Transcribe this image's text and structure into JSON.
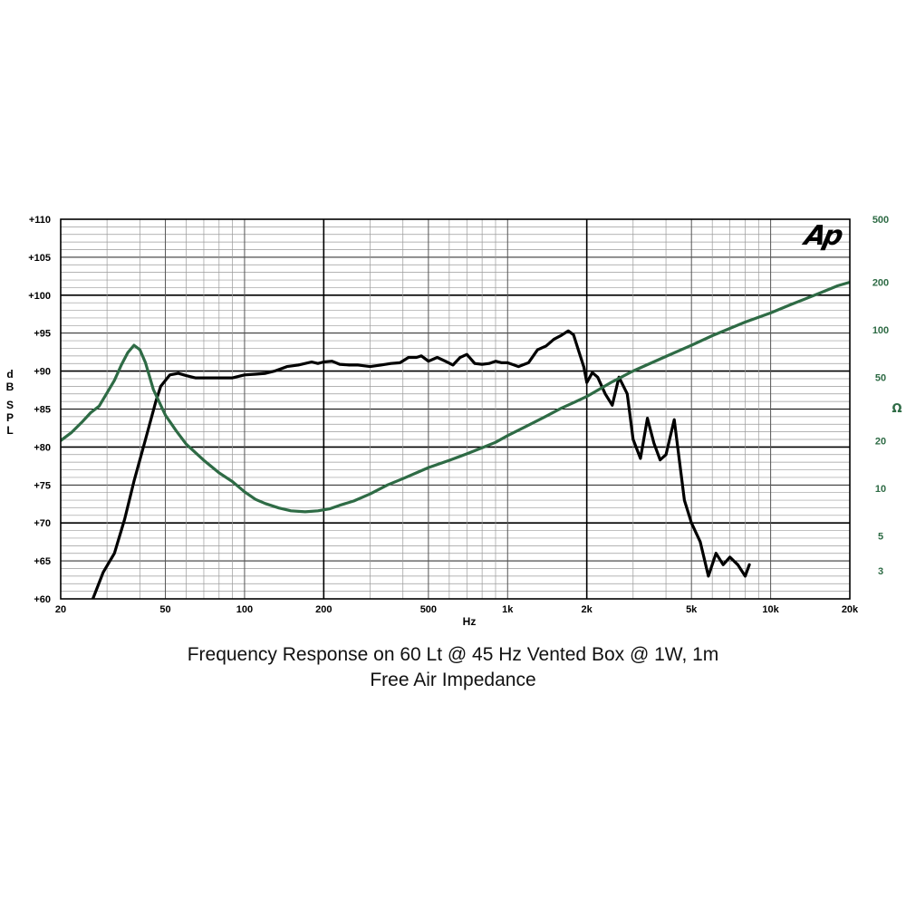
{
  "chart_data": {
    "type": "line",
    "title": "Frequency Response on 60 Lt @ 45 Hz Vented Box @ 1W, 1m",
    "subtitle": "Free Air Impedance",
    "xlabel": "Hz",
    "ylabel_left": "dB SPL",
    "ylabel_right": "Ω",
    "x_scale": "log",
    "xlim": [
      20,
      20000
    ],
    "ylim_left": [
      60,
      110
    ],
    "ylim_right": [
      2,
      500
    ],
    "y_right_scale": "log",
    "grid": true,
    "logo": "Ap",
    "x_ticks": [
      {
        "value": 20,
        "label": "20"
      },
      {
        "value": 50,
        "label": "50"
      },
      {
        "value": 100,
        "label": "100"
      },
      {
        "value": 200,
        "label": "200"
      },
      {
        "value": 500,
        "label": "500"
      },
      {
        "value": 1000,
        "label": "1k"
      },
      {
        "value": 2000,
        "label": "2k"
      },
      {
        "value": 5000,
        "label": "5k"
      },
      {
        "value": 10000,
        "label": "10k"
      },
      {
        "value": 20000,
        "label": "20k"
      }
    ],
    "y_left_ticks": [
      {
        "value": 60,
        "label": "+60"
      },
      {
        "value": 65,
        "label": "+65"
      },
      {
        "value": 70,
        "label": "+70"
      },
      {
        "value": 75,
        "label": "+75"
      },
      {
        "value": 80,
        "label": "+80"
      },
      {
        "value": 85,
        "label": "+85"
      },
      {
        "value": 90,
        "label": "+90"
      },
      {
        "value": 95,
        "label": "+95"
      },
      {
        "value": 100,
        "label": "+100"
      },
      {
        "value": 105,
        "label": "+105"
      },
      {
        "value": 110,
        "label": "+110"
      }
    ],
    "y_right_ticks": [
      {
        "value": 3,
        "label": "3"
      },
      {
        "value": 5,
        "label": "5"
      },
      {
        "value": 10,
        "label": "10"
      },
      {
        "value": 20,
        "label": "20"
      },
      {
        "value": 50,
        "label": "50"
      },
      {
        "value": 100,
        "label": "100"
      },
      {
        "value": 200,
        "label": "200"
      },
      {
        "value": 500,
        "label": "500"
      }
    ],
    "series": [
      {
        "axis": "left",
        "color": "#000000",
        "x": [
          26.5,
          29,
          32,
          35,
          38,
          42,
          46,
          48,
          52,
          56,
          60,
          65,
          75,
          90,
          100,
          110,
          120,
          130,
          145,
          160,
          180,
          190,
          200,
          215,
          230,
          250,
          270,
          300,
          330,
          360,
          390,
          420,
          450,
          470,
          500,
          540,
          580,
          620,
          660,
          700,
          750,
          800,
          850,
          900,
          950,
          1000,
          1100,
          1200,
          1300,
          1400,
          1500,
          1600,
          1700,
          1780,
          1850,
          1950,
          2000,
          2100,
          2200,
          2350,
          2500,
          2650,
          2850,
          3000,
          3200,
          3400,
          3600,
          3800,
          4000,
          4300,
          4700,
          5000,
          5400,
          5800,
          6200,
          6600,
          7000,
          7500,
          8000,
          8300
        ],
        "y": [
          60,
          63.5,
          66,
          70.5,
          75.5,
          81,
          86,
          88,
          89.5,
          89.7,
          89.4,
          89.1,
          89.1,
          89.1,
          89.5,
          89.6,
          89.7,
          90,
          90.6,
          90.8,
          91.2,
          91,
          91.2,
          91.3,
          90.9,
          90.8,
          90.8,
          90.6,
          90.8,
          91,
          91.1,
          91.8,
          91.8,
          92,
          91.3,
          91.8,
          91.3,
          90.8,
          91.8,
          92.2,
          91,
          90.9,
          91,
          91.3,
          91.1,
          91.1,
          90.6,
          91.1,
          92.8,
          93.3,
          94.2,
          94.7,
          95.3,
          94.8,
          93,
          90.5,
          88.5,
          89.8,
          89.2,
          87,
          85.5,
          89.2,
          87,
          81,
          78.5,
          83.8,
          80.5,
          78.3,
          79,
          83.6,
          73,
          70,
          67.5,
          63,
          66,
          64.5,
          65.5,
          64.5,
          63,
          64.5
        ]
      },
      {
        "axis": "right",
        "color": "#2e6b45",
        "x": [
          20,
          22,
          24,
          26,
          28,
          30,
          32,
          34,
          36,
          38,
          40,
          42,
          45,
          50,
          55,
          60,
          70,
          80,
          90,
          100,
          110,
          120,
          135,
          150,
          170,
          190,
          210,
          230,
          260,
          300,
          350,
          400,
          450,
          500,
          600,
          700,
          800,
          900,
          1000,
          1200,
          1400,
          1600,
          1800,
          2000,
          2500,
          3000,
          4000,
          5000,
          6000,
          8000,
          10000,
          12000,
          15000,
          18000,
          20000
        ],
        "x_note": "",
        "y": [
          20,
          22.5,
          26,
          30,
          33,
          40,
          48,
          60,
          72,
          80,
          75,
          62,
          42,
          29,
          23,
          19,
          15,
          12.5,
          11,
          9.5,
          8.5,
          8,
          7.5,
          7.2,
          7.1,
          7.2,
          7.4,
          7.8,
          8.3,
          9.2,
          10.5,
          11.5,
          12.5,
          13.5,
          15,
          16.5,
          18,
          19.5,
          21.5,
          25,
          28.5,
          32,
          35,
          38,
          47,
          55,
          68,
          80,
          92,
          112,
          128,
          145,
          168,
          190,
          200
        ]
      }
    ]
  }
}
